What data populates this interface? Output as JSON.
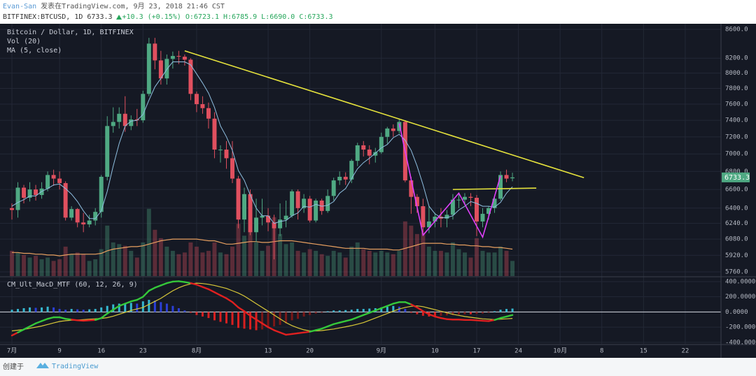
{
  "header": {
    "author": "Evan-San",
    "published": "发表在TradingView.com, 9月 23, 2018 21:46 CST",
    "symbol": "BITFINEX:BTCUSD, 1D",
    "last": "6733.3",
    "change": "+10.3 (+0.15%)",
    "ohlc": [
      "O:6723.1",
      "H:6785.9",
      "L:6690.0",
      "C:6733.3"
    ]
  },
  "footer": {
    "created": "创建于",
    "brand": "TradingView"
  },
  "chart_data": {
    "type": "candlestick",
    "title": "Bitcoin / Dollar, 1D, BITFINEX",
    "x": [
      "2018-07-01",
      "2018-07-02",
      "2018-07-03",
      "2018-07-04",
      "2018-07-05",
      "2018-07-06",
      "2018-07-07",
      "2018-07-08",
      "2018-07-09",
      "2018-07-10",
      "2018-07-11",
      "2018-07-12",
      "2018-07-13",
      "2018-07-14",
      "2018-07-15",
      "2018-07-16",
      "2018-07-17",
      "2018-07-18",
      "2018-07-19",
      "2018-07-20",
      "2018-07-21",
      "2018-07-22",
      "2018-07-23",
      "2018-07-24",
      "2018-07-25",
      "2018-07-26",
      "2018-07-27",
      "2018-07-28",
      "2018-07-29",
      "2018-07-30",
      "2018-07-31",
      "2018-08-01",
      "2018-08-02",
      "2018-08-03",
      "2018-08-04",
      "2018-08-05",
      "2018-08-06",
      "2018-08-07",
      "2018-08-08",
      "2018-08-09",
      "2018-08-10",
      "2018-08-11",
      "2018-08-12",
      "2018-08-13",
      "2018-08-14",
      "2018-08-15",
      "2018-08-16",
      "2018-08-17",
      "2018-08-18",
      "2018-08-19",
      "2018-08-20",
      "2018-08-21",
      "2018-08-22",
      "2018-08-23",
      "2018-08-24",
      "2018-08-25",
      "2018-08-26",
      "2018-08-27",
      "2018-08-28",
      "2018-08-29",
      "2018-08-30",
      "2018-08-31",
      "2018-09-01",
      "2018-09-02",
      "2018-09-03",
      "2018-09-04",
      "2018-09-05",
      "2018-09-06",
      "2018-09-07",
      "2018-09-08",
      "2018-09-09",
      "2018-09-10",
      "2018-09-11",
      "2018-09-12",
      "2018-09-13",
      "2018-09-14",
      "2018-09-15",
      "2018-09-16",
      "2018-09-17",
      "2018-09-18",
      "2018-09-19",
      "2018-09-20",
      "2018-09-21",
      "2018-09-22",
      "2018-09-23"
    ],
    "open": [
      6400,
      6380,
      6620,
      6510,
      6600,
      6540,
      6610,
      6760,
      6720,
      6670,
      6300,
      6390,
      6250,
      6230,
      6270,
      6360,
      6740,
      7330,
      7380,
      7480,
      7330,
      7410,
      7400,
      7730,
      8400,
      8170,
      7930,
      8190,
      8230,
      8220,
      8180,
      7730,
      7600,
      7550,
      7420,
      7050,
      7050,
      6950,
      6720,
      6280,
      6550,
      6150,
      6300,
      6320,
      6250,
      6190,
      6280,
      6320,
      6580,
      6400,
      6500,
      6270,
      6480,
      6370,
      6530,
      6700,
      6740,
      6710,
      6920,
      7100,
      7050,
      6980,
      7020,
      7200,
      7300,
      7270,
      7380,
      6700,
      6520,
      6420,
      6200,
      6260,
      6310,
      6290,
      6330,
      6490,
      6490,
      6520,
      6510,
      6260,
      6340,
      6400,
      6500,
      6760,
      6723.1
    ],
    "high": [
      6450,
      6680,
      6650,
      6680,
      6650,
      6680,
      6800,
      6820,
      6800,
      6690,
      6420,
      6400,
      6350,
      6330,
      6400,
      6760,
      7450,
      7560,
      7560,
      7700,
      7460,
      7540,
      7770,
      8480,
      8480,
      8300,
      8250,
      8290,
      8300,
      8250,
      8200,
      7760,
      7700,
      7620,
      7500,
      7100,
      7150,
      7150,
      6750,
      6620,
      6600,
      6500,
      6500,
      6400,
      6330,
      6450,
      6480,
      6600,
      6600,
      6550,
      6530,
      6500,
      6500,
      6600,
      6730,
      6800,
      6790,
      6940,
      7130,
      7150,
      7100,
      7070,
      7250,
      7320,
      7350,
      7410,
      7400,
      6740,
      6550,
      6500,
      6420,
      6350,
      6400,
      6380,
      6550,
      6550,
      6560,
      6560,
      6540,
      6400,
      6420,
      6530,
      6800,
      6820,
      6785.9
    ],
    "low": [
      6280,
      6300,
      6450,
      6470,
      6480,
      6500,
      6580,
      6640,
      6600,
      6270,
      6270,
      6200,
      6150,
      6200,
      6220,
      6300,
      6700,
      7250,
      7300,
      7260,
      7280,
      7330,
      7370,
      7700,
      8050,
      7850,
      7850,
      8060,
      8120,
      8100,
      7650,
      7500,
      7480,
      7300,
      6950,
      6900,
      6830,
      6670,
      6190,
      6150,
      6120,
      6050,
      6220,
      6160,
      5880,
      6110,
      6200,
      6300,
      6280,
      6350,
      6250,
      6250,
      6330,
      6350,
      6480,
      6650,
      6650,
      6670,
      6860,
      6970,
      6880,
      6900,
      7000,
      7120,
      7200,
      7240,
      6680,
      6340,
      6350,
      6150,
      6140,
      6200,
      6200,
      6200,
      6280,
      6400,
      6440,
      6420,
      6110,
      6200,
      6280,
      6350,
      6480,
      6680,
      6690
    ],
    "close": [
      6380,
      6620,
      6510,
      6600,
      6540,
      6610,
      6760,
      6720,
      6670,
      6300,
      6390,
      6250,
      6230,
      6270,
      6360,
      6740,
      7330,
      7380,
      7480,
      7330,
      7410,
      7400,
      7730,
      8400,
      8170,
      7930,
      8190,
      8230,
      8220,
      8180,
      7730,
      7600,
      7550,
      7420,
      7050,
      7050,
      6950,
      6720,
      6280,
      6550,
      6150,
      6300,
      6320,
      6250,
      6190,
      6280,
      6320,
      6580,
      6400,
      6500,
      6270,
      6480,
      6370,
      6530,
      6700,
      6740,
      6710,
      6920,
      7100,
      7050,
      6980,
      7020,
      7200,
      7300,
      7270,
      7380,
      6700,
      6520,
      6420,
      6200,
      6260,
      6310,
      6290,
      6330,
      6490,
      6490,
      6520,
      6510,
      6260,
      6340,
      6400,
      6500,
      6760,
      6720,
      6733.3
    ],
    "up_color": "#4fa983",
    "down_color": "#e0505f",
    "ma": {
      "name": "MA (5, close)",
      "color": "#8fbfe0",
      "values": [
        6420,
        6460,
        6490,
        6530,
        6530,
        6580,
        6610,
        6650,
        6660,
        6610,
        6550,
        6470,
        6370,
        6290,
        6290,
        6370,
        6580,
        6860,
        7120,
        7330,
        7390,
        7400,
        7470,
        7650,
        7820,
        7930,
        8050,
        8150,
        8150,
        8150,
        8110,
        7990,
        7870,
        7740,
        7560,
        7330,
        7200,
        7040,
        6810,
        6700,
        6540,
        6400,
        6320,
        6320,
        6240,
        6260,
        6270,
        6320,
        6350,
        6420,
        6410,
        6440,
        6420,
        6430,
        6470,
        6560,
        6610,
        6720,
        6830,
        6900,
        6950,
        7010,
        7070,
        7110,
        7190,
        7230,
        7160,
        7040,
        6860,
        6650,
        6420,
        6340,
        6300,
        6300,
        6320,
        6380,
        6420,
        6470,
        6450,
        6420,
        6420,
        6410,
        6460,
        6560,
        6630
      ]
    },
    "volume": {
      "name": "Vol (20)",
      "ylim": [
        0,
        300
      ],
      "ma_color": "#e8a060",
      "values": [
        30,
        28,
        25,
        22,
        24,
        20,
        22,
        18,
        20,
        35,
        26,
        28,
        26,
        18,
        20,
        32,
        60,
        40,
        38,
        36,
        30,
        22,
        40,
        80,
        55,
        45,
        35,
        30,
        26,
        28,
        40,
        35,
        28,
        30,
        40,
        28,
        26,
        35,
        62,
        48,
        55,
        40,
        30,
        36,
        70,
        50,
        38,
        40,
        30,
        28,
        32,
        30,
        26,
        24,
        30,
        28,
        22,
        35,
        40,
        32,
        30,
        28,
        30,
        28,
        26,
        30,
        65,
        60,
        50,
        52,
        35,
        30,
        30,
        28,
        40,
        32,
        28,
        22,
        45,
        30,
        28,
        28,
        35,
        30,
        18
      ],
      "ma_values": [
        28,
        28,
        27,
        27,
        26,
        26,
        25,
        25,
        24,
        25,
        26,
        26,
        26,
        26,
        26,
        27,
        30,
        32,
        33,
        34,
        35,
        35,
        36,
        38,
        40,
        42,
        43,
        44,
        44,
        44,
        44,
        44,
        43,
        42,
        42,
        40,
        38,
        38,
        39,
        40,
        41,
        41,
        40,
        40,
        41,
        42,
        42,
        42,
        41,
        40,
        39,
        38,
        37,
        36,
        35,
        34,
        33,
        33,
        33,
        33,
        32,
        32,
        32,
        32,
        31,
        31,
        33,
        35,
        37,
        39,
        39,
        39,
        39,
        38,
        38,
        37,
        37,
        36,
        36,
        35,
        35,
        34,
        34,
        33,
        32
      ]
    },
    "xlim": [
      "2018-06-29",
      "2018-10-28"
    ],
    "xticks": [
      {
        "value": "2018-07-01",
        "label": "7月"
      },
      {
        "value": "2018-07-09",
        "label": "9"
      },
      {
        "value": "2018-07-16",
        "label": "16"
      },
      {
        "value": "2018-07-23",
        "label": "23"
      },
      {
        "value": "2018-08-01",
        "label": "8月"
      },
      {
        "value": "2018-08-13",
        "label": "13"
      },
      {
        "value": "2018-08-20",
        "label": "20"
      },
      {
        "value": "2018-09-01",
        "label": "9月"
      },
      {
        "value": "2018-09-10",
        "label": "10"
      },
      {
        "value": "2018-09-17",
        "label": "17"
      },
      {
        "value": "2018-09-24",
        "label": "24"
      },
      {
        "value": "2018-10-01",
        "label": "10月"
      },
      {
        "value": "2018-10-08",
        "label": "8"
      },
      {
        "value": "2018-10-15",
        "label": "15"
      },
      {
        "value": "2018-10-22",
        "label": "22"
      }
    ],
    "ylim": [
      5720,
      8680
    ],
    "log_scale": true,
    "grid": true,
    "yticks": [
      {
        "value": 8600,
        "label": "8600.0"
      },
      {
        "value": 8200,
        "label": "8200.0"
      },
      {
        "value": 8000,
        "label": "8000.0"
      },
      {
        "value": 7800,
        "label": "7800.0"
      },
      {
        "value": 7600,
        "label": "7600.0"
      },
      {
        "value": 7400,
        "label": "7400.0"
      },
      {
        "value": 7200,
        "label": "7200.0"
      },
      {
        "value": 7000,
        "label": "7000.0"
      },
      {
        "value": 6800,
        "label": "6800.0"
      },
      {
        "value": 6600,
        "label": "6600.0"
      },
      {
        "value": 6400,
        "label": "6400.0"
      },
      {
        "value": 6240,
        "label": "6240.0"
      },
      {
        "value": 6080,
        "label": "6080.0"
      },
      {
        "value": 5920,
        "label": "5920.0"
      },
      {
        "value": 5760,
        "label": "5760.0"
      }
    ],
    "last_price": {
      "value": 6733.3,
      "label": "6733.3"
    },
    "drawings": [
      {
        "color": "#e6e33c",
        "points": [
          [
            "2018-07-30",
            8300
          ],
          [
            "2018-10-05",
            6730
          ]
        ]
      },
      {
        "color": "#e6e33c",
        "points": [
          [
            "2018-09-13",
            6600
          ],
          [
            "2018-09-27",
            6615
          ]
        ]
      },
      {
        "color": "#e040fb",
        "points": [
          [
            "2018-09-04",
            7360
          ],
          [
            "2018-09-08",
            6120
          ],
          [
            "2018-09-14",
            6560
          ],
          [
            "2018-09-18",
            6100
          ],
          [
            "2018-09-21",
            6750
          ]
        ]
      }
    ],
    "macd": {
      "name": "CM_Ult_MacD_MTF (60, 12, 26, 9)",
      "ylim": [
        -420,
        455
      ],
      "above_color": "#35c83a",
      "below_color": "#e02020",
      "signal_color": "#d8c838",
      "hist_colors": [
        "#35b7d0",
        "#2b3fd8",
        "#d82020",
        "#7a1818"
      ],
      "yticks": [
        {
          "value": 400,
          "label": "400.0000"
        },
        {
          "value": 200,
          "label": "200.0000"
        },
        {
          "value": 0,
          "label": "0.0000"
        },
        {
          "value": -200,
          "label": "-200.0000"
        },
        {
          "value": -400,
          "label": "-400.0000"
        }
      ],
      "macd": [
        -310,
        -270,
        -230,
        -190,
        -150,
        -120,
        -90,
        -70,
        -70,
        -90,
        -100,
        -110,
        -115,
        -110,
        -105,
        -80,
        -20,
        30,
        80,
        110,
        140,
        160,
        200,
        280,
        320,
        350,
        380,
        400,
        405,
        395,
        380,
        360,
        330,
        300,
        260,
        220,
        180,
        130,
        60,
        10,
        -50,
        -100,
        -150,
        -200,
        -240,
        -270,
        -300,
        -290,
        -280,
        -270,
        -260,
        -240,
        -220,
        -190,
        -160,
        -140,
        -120,
        -100,
        -70,
        -40,
        -10,
        20,
        50,
        80,
        110,
        130,
        130,
        100,
        60,
        10,
        -30,
        -60,
        -80,
        -95,
        -100,
        -100,
        -105,
        -105,
        -110,
        -115,
        -120,
        -105,
        -80,
        -60,
        -40
      ],
      "signal": [
        -250,
        -240,
        -230,
        -215,
        -200,
        -185,
        -165,
        -145,
        -125,
        -115,
        -110,
        -105,
        -100,
        -95,
        -90,
        -85,
        -75,
        -55,
        -30,
        -5,
        20,
        40,
        60,
        100,
        140,
        180,
        230,
        280,
        320,
        350,
        370,
        380,
        375,
        365,
        350,
        330,
        310,
        280,
        250,
        210,
        160,
        110,
        60,
        10,
        -40,
        -90,
        -140,
        -180,
        -210,
        -235,
        -250,
        -250,
        -245,
        -235,
        -225,
        -210,
        -195,
        -180,
        -160,
        -140,
        -110,
        -80,
        -50,
        -20,
        10,
        40,
        60,
        75,
        80,
        70,
        50,
        30,
        10,
        -10,
        -30,
        -45,
        -60,
        -70,
        -80,
        -90,
        -95,
        -100,
        -95,
        -90,
        -85
      ],
      "histogram": [
        30,
        40,
        50,
        60,
        55,
        60,
        70,
        60,
        40,
        30,
        40,
        35,
        30,
        35,
        40,
        60,
        80,
        100,
        110,
        115,
        120,
        110,
        140,
        160,
        150,
        130,
        110,
        80,
        50,
        20,
        -10,
        -40,
        -60,
        -80,
        -110,
        -130,
        -150,
        -170,
        -210,
        -220,
        -230,
        -240,
        -230,
        -210,
        -190,
        -170,
        -150,
        -110,
        -90,
        -60,
        -40,
        -20,
        -10,
        10,
        20,
        20,
        25,
        30,
        40,
        40,
        45,
        50,
        60,
        70,
        80,
        70,
        40,
        -10,
        -30,
        -50,
        -60,
        -60,
        -50,
        -45,
        -40,
        -35,
        -30,
        -30,
        -25,
        -20,
        -10,
        10,
        30,
        40,
        45
      ]
    }
  }
}
